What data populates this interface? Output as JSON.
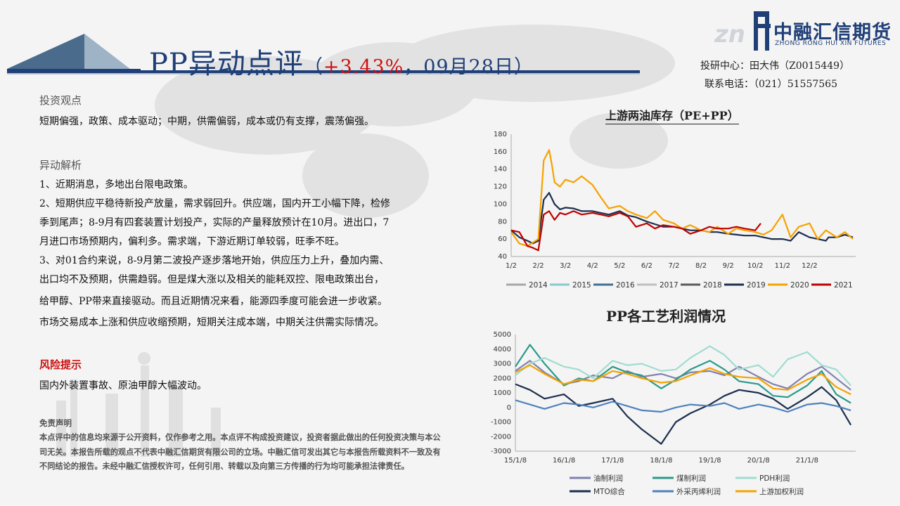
{
  "header": {
    "title_main": "PP异动点评",
    "title_paren_open": "（",
    "title_change": "+3.43%",
    "title_rest": "，09月28日）",
    "logo_cn": "中融汇信期货",
    "logo_en": "ZHONG RONG HUI XIN FUTURES",
    "analyst": "投研中心：田大伟（Z0015449）",
    "phone": "联系电话：（021）51557565"
  },
  "content": {
    "view_title": "投资观点",
    "view_text": "短期偏强，政策、成本驱动；中期，供需偏弱，成本或仍有支撑，震荡偏强。",
    "analysis_title": "异动解析",
    "analysis_lines": [
      "1、近期消息，多地出台限电政策。",
      "2、短期供应平稳待新投产放量，需求弱回升。供应端，国内开工小幅下降，检修",
      "季到尾声；8-9月有四套装置计划投产，实际的产量释放预计在10月。进出口，7",
      "月进口市场预期内，偏利多。需求端，下游近期订单较弱，旺季不旺。",
      "3、对01合约来说，8-9月第二波投产逐步落地开始，供应压力上升，叠加内需、",
      "出口均不及预期，供需趋弱。但是煤大涨以及相关的能耗双控、限电政策出台，",
      "给甲醇、PP带来直接驱动。而且近期情况来看，能源四季度可能会进一步收紧。",
      "市场交易成本上涨和供应收缩预期，短期关注成本端，中期关注供需实际情况。"
    ],
    "risk_title": "风险提示",
    "risk_text": "国内外装置事故、原油甲醇大幅波动。",
    "disclaimer_title": "免责声明",
    "disclaimer_text": "本点评中的信息均来源于公开资料，仅作参考之用。本点评不构成投资建议，投资者据此做出的任何投资决策与本公司无关。本报告所载的观点不代表中融汇信期货有限公司的立场。中融汇信可发出其它与本报告所载资料不一致及有不同结论的报告。未经中融汇信授权许可，任何引用、转载以及向第三方传播的行为均可能承担法律责任。"
  },
  "colors": {
    "brand": "#1f3f77",
    "risk": "#cc1111",
    "s2014": "#a6a6a6",
    "s2015": "#8ac6d1",
    "s2016": "#3f6f8f",
    "s2017": "#bfbfbf",
    "s2018": "#595959",
    "s2019": "#1c2f4f",
    "s2020": "#f5a200",
    "s2021": "#c00000",
    "p_oil": "#8080b0",
    "p_coal": "#2a9a8a",
    "p_pdh": "#a0dcd0",
    "p_mto": "#1c2f4f",
    "p_propylene": "#4f81bd",
    "p_upstream": "#f5a200"
  },
  "chart_data": [
    {
      "type": "line",
      "title": "上游两油库存（PE+PP）",
      "x_ticks": [
        "1/2",
        "2/2",
        "3/2",
        "4/2",
        "5/2",
        "6/2",
        "7/2",
        "8/2",
        "9/2",
        "10/2",
        "11/2",
        "12/2"
      ],
      "y_ticks": [
        "40",
        "60",
        "80",
        "100",
        "120",
        "140",
        "160",
        "180"
      ],
      "ylim": [
        40,
        180
      ],
      "legend": [
        "2014",
        "2015",
        "2016",
        "2017",
        "2018",
        "2019",
        "2020",
        "2021"
      ],
      "legend_position": "bottom",
      "series": [
        {
          "name": "2019",
          "x": [
            0,
            0.3,
            0.6,
            0.8,
            1,
            1.2,
            1.4,
            1.6,
            1.8,
            2,
            2.3,
            2.6,
            3,
            3.3,
            3.6,
            4,
            4.3,
            4.6,
            5,
            5.3,
            5.6,
            6,
            6.3,
            6.6,
            7,
            7.3,
            7.6,
            8,
            8.3,
            8.6,
            9,
            9.3,
            9.6,
            10,
            10.3,
            10.6,
            11,
            11.3,
            11.6,
            12,
            12.3,
            12.6,
            11.7
          ],
          "values": [
            70,
            62,
            58,
            55,
            58,
            105,
            113,
            100,
            94,
            96,
            95,
            92,
            92,
            90,
            88,
            92,
            87,
            85,
            80,
            77,
            74,
            74,
            72,
            70,
            70,
            68,
            68,
            66,
            65,
            64,
            64,
            62,
            60,
            60,
            58,
            68,
            62,
            60,
            58,
            62,
            65,
            62,
            62
          ]
        },
        {
          "name": "2020",
          "x": [
            0,
            0.3,
            0.6,
            0.8,
            1,
            1.2,
            1.4,
            1.5,
            1.6,
            1.8,
            2,
            2.3,
            2.6,
            3,
            3.3,
            3.6,
            4,
            4.3,
            4.6,
            5,
            5.3,
            5.6,
            6,
            6.3,
            6.6,
            7,
            7.3,
            7.6,
            8,
            8.3,
            8.6,
            9,
            9.3,
            9.6,
            10,
            10.3,
            10.6,
            11,
            11.3,
            11.6,
            12,
            12.3,
            12.6
          ],
          "values": [
            68,
            55,
            52,
            56,
            60,
            150,
            162,
            145,
            125,
            120,
            128,
            125,
            132,
            122,
            108,
            95,
            98,
            92,
            88,
            84,
            92,
            82,
            78,
            72,
            76,
            70,
            68,
            74,
            66,
            72,
            70,
            68,
            65,
            70,
            88,
            62,
            74,
            78,
            60,
            70,
            62,
            68,
            60
          ]
        },
        {
          "name": "2021",
          "x": [
            0,
            0.3,
            0.6,
            0.8,
            1,
            1.2,
            1.4,
            1.6,
            1.8,
            2,
            2.3,
            2.6,
            3,
            3.3,
            3.6,
            4,
            4.3,
            4.6,
            5,
            5.3,
            5.6,
            6,
            6.3,
            6.6,
            7,
            7.3,
            7.6,
            8,
            8.3,
            8.6,
            9,
            9.2
          ],
          "values": [
            70,
            68,
            52,
            50,
            47,
            88,
            92,
            82,
            90,
            88,
            92,
            88,
            90,
            88,
            86,
            90,
            86,
            74,
            78,
            72,
            76,
            74,
            72,
            66,
            70,
            74,
            72,
            72,
            74,
            72,
            70,
            78
          ]
        }
      ]
    },
    {
      "type": "line",
      "title": "PP各工艺利润情况",
      "x_ticks": [
        "15/1/8",
        "16/1/8",
        "17/1/8",
        "18/1/8",
        "19/1/8",
        "20/1/8",
        "21/1/8"
      ],
      "y_ticks": [
        "-3000",
        "-2000",
        "-1000",
        "0",
        "1000",
        "2000",
        "3000",
        "4000",
        "5000"
      ],
      "ylim": [
        -3000,
        5000
      ],
      "legend": [
        "油制利润",
        "煤制利润",
        "PDH利润",
        "MTO综合",
        "外采丙烯利润",
        "上游加权利润"
      ],
      "legend_position": "bottom",
      "series": [
        {
          "name": "油制利润",
          "x": [
            0,
            0.3,
            0.6,
            1,
            1.3,
            1.6,
            2,
            2.3,
            2.6,
            3,
            3.3,
            3.6,
            4,
            4.3,
            4.6,
            5,
            5.3,
            5.6,
            6,
            6.3,
            6.6,
            6.9
          ],
          "values": [
            2500,
            3200,
            2400,
            1600,
            1800,
            2200,
            2000,
            2500,
            2100,
            2300,
            2000,
            2400,
            2500,
            2200,
            2800,
            2100,
            1600,
            1300,
            2300,
            2800,
            2000,
            1200
          ]
        },
        {
          "name": "煤制利润",
          "x": [
            0,
            0.3,
            0.6,
            1,
            1.3,
            1.6,
            2,
            2.3,
            2.6,
            3,
            3.3,
            3.6,
            4,
            4.3,
            4.6,
            5,
            5.3,
            5.6,
            6,
            6.3,
            6.6,
            6.9
          ],
          "values": [
            2800,
            4300,
            3000,
            1500,
            2000,
            1800,
            2800,
            2400,
            2200,
            1300,
            1900,
            2600,
            3200,
            2600,
            1800,
            1600,
            800,
            700,
            1500,
            2500,
            900,
            300
          ]
        },
        {
          "name": "PDH利润",
          "x": [
            0,
            0.3,
            0.6,
            1,
            1.3,
            1.6,
            2,
            2.3,
            2.6,
            3,
            3.3,
            3.6,
            4,
            4.3,
            4.6,
            5,
            5.3,
            5.6,
            6,
            6.3,
            6.6,
            6.9
          ],
          "values": [
            2200,
            3000,
            3400,
            2800,
            2600,
            2000,
            3200,
            2900,
            3000,
            2500,
            2600,
            3400,
            4200,
            3600,
            2600,
            2900,
            2100,
            3300,
            3800,
            2900,
            2600,
            1500
          ]
        },
        {
          "name": "MTO综合",
          "x": [
            0,
            0.3,
            0.6,
            1,
            1.3,
            1.6,
            2,
            2.3,
            2.6,
            3,
            3.3,
            3.6,
            4,
            4.3,
            4.6,
            5,
            5.3,
            5.6,
            6,
            6.3,
            6.6,
            6.9
          ],
          "values": [
            1600,
            1200,
            600,
            900,
            100,
            300,
            600,
            -600,
            -1500,
            -2500,
            -1000,
            -400,
            200,
            800,
            1200,
            1000,
            600,
            -100,
            700,
            1400,
            500,
            -1200
          ]
        },
        {
          "name": "外采丙烯利润",
          "x": [
            0,
            0.3,
            0.6,
            1,
            1.3,
            1.6,
            2,
            2.3,
            2.6,
            3,
            3.3,
            3.6,
            4,
            4.3,
            4.6,
            5,
            5.3,
            5.6,
            6,
            6.3,
            6.6,
            6.9
          ],
          "values": [
            500,
            200,
            -100,
            300,
            200,
            0,
            400,
            100,
            -200,
            -300,
            0,
            200,
            100,
            300,
            -100,
            200,
            0,
            -300,
            200,
            300,
            100,
            -200
          ]
        },
        {
          "name": "上游加权利润",
          "x": [
            0,
            0.3,
            0.6,
            1,
            1.3,
            1.6,
            2,
            2.3,
            2.6,
            3,
            3.3,
            3.6,
            4,
            4.3,
            4.6,
            5,
            5.3,
            5.6,
            6,
            6.3,
            6.6,
            6.9
          ],
          "values": [
            2400,
            2900,
            2300,
            1600,
            1900,
            1800,
            2500,
            2300,
            2000,
            1700,
            1800,
            2200,
            2700,
            2300,
            2100,
            2000,
            1300,
            1200,
            1900,
            2300,
            1400,
            900
          ]
        }
      ]
    }
  ]
}
